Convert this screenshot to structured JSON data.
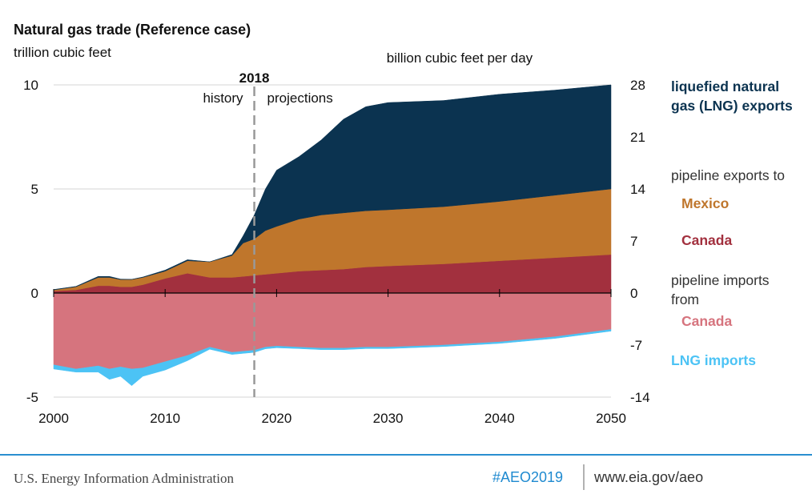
{
  "chart_data": {
    "type": "area",
    "title": "Natural gas trade (Reference case)",
    "y_label": "trillion cubic feet",
    "y2_label": "billion cubic feet per day",
    "vline_x": 2018,
    "annotations": [
      "history",
      "projections"
    ],
    "legend_groups": [
      "pipeline exports to",
      "pipeline imports from"
    ],
    "x": [
      2000,
      2002,
      2004,
      2005,
      2006,
      2007,
      2008,
      2010,
      2012,
      2014,
      2016,
      2017,
      2018,
      2019,
      2020,
      2022,
      2024,
      2026,
      2028,
      2030,
      2035,
      2040,
      2045,
      2050
    ],
    "series": [
      {
        "name": "liquefied natural gas (LNG) exports",
        "color": "#0b3350",
        "values": [
          0.02,
          0.02,
          0.05,
          0.05,
          0.02,
          0.01,
          0.02,
          0.05,
          0.05,
          0.0,
          0.05,
          0.35,
          1.15,
          2.0,
          2.7,
          3.0,
          3.6,
          4.5,
          5.0,
          5.15,
          5.1,
          5.15,
          5.05,
          5.0
        ]
      },
      {
        "name": "Mexico",
        "color": "#bf762c",
        "values": [
          0.05,
          0.15,
          0.4,
          0.4,
          0.35,
          0.35,
          0.35,
          0.35,
          0.6,
          0.75,
          1.05,
          1.6,
          1.75,
          2.1,
          2.25,
          2.5,
          2.65,
          2.7,
          2.7,
          2.7,
          2.75,
          2.85,
          3.0,
          3.15
        ]
      },
      {
        "name": "Canada",
        "color": "#a2303e",
        "values": [
          0.1,
          0.15,
          0.35,
          0.35,
          0.3,
          0.3,
          0.4,
          0.7,
          0.95,
          0.75,
          0.75,
          0.8,
          0.85,
          0.9,
          0.95,
          1.05,
          1.1,
          1.15,
          1.25,
          1.3,
          1.4,
          1.55,
          1.7,
          1.85
        ]
      },
      {
        "name": "Canada",
        "color": "#d6747e",
        "values": [
          -3.45,
          -3.65,
          -3.5,
          -3.65,
          -3.55,
          -3.65,
          -3.6,
          -3.3,
          -3.0,
          -2.6,
          -2.85,
          -2.8,
          -2.75,
          -2.6,
          -2.55,
          -2.6,
          -2.65,
          -2.65,
          -2.6,
          -2.6,
          -2.5,
          -2.35,
          -2.1,
          -1.75
        ]
      },
      {
        "name": "LNG imports",
        "color": "#4cc3f5",
        "values": [
          -0.2,
          -0.15,
          -0.3,
          -0.5,
          -0.45,
          -0.8,
          -0.4,
          -0.4,
          -0.25,
          -0.1,
          -0.1,
          -0.1,
          -0.1,
          -0.08,
          -0.08,
          -0.07,
          -0.07,
          -0.07,
          -0.07,
          -0.07,
          -0.07,
          -0.07,
          -0.08,
          -0.08
        ]
      }
    ],
    "xlim": [
      2000,
      2050
    ],
    "xticks": [
      2000,
      2010,
      2020,
      2030,
      2040,
      2050
    ],
    "ylim": [
      -5,
      10
    ],
    "yticks": [
      -5,
      0,
      5,
      10
    ],
    "y2lim": [
      -14,
      28
    ],
    "y2ticks": [
      -14,
      -7,
      0,
      7,
      14,
      21,
      28
    ],
    "grid": true
  },
  "footer": {
    "source": "U.S. Energy Information Administration",
    "hashtag": "#AEO2019",
    "url": "www.eia.gov/aeo"
  }
}
